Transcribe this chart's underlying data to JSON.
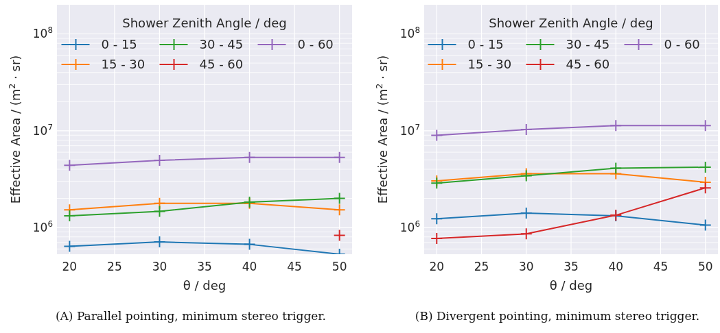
{
  "chart_data": [
    {
      "type": "line",
      "xlabel": "θ / deg",
      "ylabel": "Effective Area / (m$^{2}$ · sr)",
      "legend_title": "Shower Zenith Angle / deg",
      "legend": "top",
      "marker": "cross",
      "grid": true,
      "log": "y",
      "x": [
        20,
        30,
        40,
        50
      ],
      "xlim": [
        18.6,
        51.4
      ],
      "xticks": [
        20,
        25,
        30,
        35,
        40,
        45,
        50
      ],
      "ylim": [
        530000,
        200000000
      ],
      "yticks": [
        {
          "value": 600000,
          "label": null
        },
        {
          "value": 700000,
          "label": null
        },
        {
          "value": 800000,
          "label": null
        },
        {
          "value": 900000,
          "label": null
        },
        {
          "value": 1000000,
          "label": "10$^{6}$"
        },
        {
          "value": 2000000,
          "label": null
        },
        {
          "value": 3000000,
          "label": null
        },
        {
          "value": 4000000,
          "label": null
        },
        {
          "value": 5000000,
          "label": null
        },
        {
          "value": 6000000,
          "label": null
        },
        {
          "value": 7000000,
          "label": null
        },
        {
          "value": 8000000,
          "label": null
        },
        {
          "value": 9000000,
          "label": null
        },
        {
          "value": 10000000,
          "label": "10$^{7}$"
        },
        {
          "value": 20000000,
          "label": null
        },
        {
          "value": 30000000,
          "label": null
        },
        {
          "value": 40000000,
          "label": null
        },
        {
          "value": 50000000,
          "label": null
        },
        {
          "value": 60000000,
          "label": null
        },
        {
          "value": 70000000,
          "label": null
        },
        {
          "value": 80000000,
          "label": null
        },
        {
          "value": 90000000,
          "label": null
        },
        {
          "value": 100000000,
          "label": "10$^{8}$"
        }
      ],
      "series": [
        {
          "name": "0 - 15",
          "color": "#1f77b4",
          "values": [
            640000,
            710000,
            670000,
            530000
          ]
        },
        {
          "name": "15 - 30",
          "color": "#ff7f0e",
          "values": [
            1520000,
            1780000,
            1780000,
            1520000
          ]
        },
        {
          "name": "30 - 45",
          "color": "#2ca02c",
          "values": [
            1320000,
            1470000,
            1830000,
            2000000
          ]
        },
        {
          "name": "45 - 60",
          "color": "#d62728",
          "values": [
            null,
            null,
            null,
            830000
          ]
        },
        {
          "name": "0 - 60",
          "color": "#9467bd",
          "values": [
            4400000,
            4950000,
            5300000,
            5300000
          ]
        }
      ],
      "annotations": [
        "(A) Parallel pointing, minimum stereo trigger."
      ]
    },
    {
      "type": "line",
      "xlabel": "θ / deg",
      "ylabel": "Effective Area / (m$^{2}$ · sr)",
      "legend_title": "Shower Zenith Angle / deg",
      "legend": "top",
      "marker": "cross",
      "grid": true,
      "log": "y",
      "x": [
        20,
        30,
        40,
        50
      ],
      "xlim": [
        18.6,
        51.4
      ],
      "xticks": [
        20,
        25,
        30,
        35,
        40,
        45,
        50
      ],
      "ylim": [
        530000,
        200000000
      ],
      "yticks": [
        {
          "value": 600000,
          "label": null
        },
        {
          "value": 700000,
          "label": null
        },
        {
          "value": 800000,
          "label": null
        },
        {
          "value": 900000,
          "label": null
        },
        {
          "value": 1000000,
          "label": "10$^{6}$"
        },
        {
          "value": 2000000,
          "label": null
        },
        {
          "value": 3000000,
          "label": null
        },
        {
          "value": 4000000,
          "label": null
        },
        {
          "value": 5000000,
          "label": null
        },
        {
          "value": 6000000,
          "label": null
        },
        {
          "value": 7000000,
          "label": null
        },
        {
          "value": 8000000,
          "label": null
        },
        {
          "value": 9000000,
          "label": null
        },
        {
          "value": 10000000,
          "label": "10$^{7}$"
        },
        {
          "value": 20000000,
          "label": null
        },
        {
          "value": 30000000,
          "label": null
        },
        {
          "value": 40000000,
          "label": null
        },
        {
          "value": 50000000,
          "label": null
        },
        {
          "value": 60000000,
          "label": null
        },
        {
          "value": 70000000,
          "label": null
        },
        {
          "value": 80000000,
          "label": null
        },
        {
          "value": 90000000,
          "label": null
        },
        {
          "value": 100000000,
          "label": "10$^{8}$"
        }
      ],
      "series": [
        {
          "name": "0 - 15",
          "color": "#1f77b4",
          "values": [
            1230000,
            1410000,
            1320000,
            1060000
          ]
        },
        {
          "name": "15 - 30",
          "color": "#ff7f0e",
          "values": [
            3030000,
            3600000,
            3600000,
            2940000
          ]
        },
        {
          "name": "30 - 45",
          "color": "#2ca02c",
          "values": [
            2880000,
            3430000,
            4100000,
            4200000
          ]
        },
        {
          "name": "45 - 60",
          "color": "#d62728",
          "values": [
            770000,
            860000,
            1340000,
            2570000
          ]
        },
        {
          "name": "0 - 60",
          "color": "#9467bd",
          "values": [
            8960000,
            10300000,
            11300000,
            11300000
          ]
        }
      ],
      "annotations": [
        "(B) Divergent pointing, minimum stereo trigger."
      ]
    }
  ]
}
